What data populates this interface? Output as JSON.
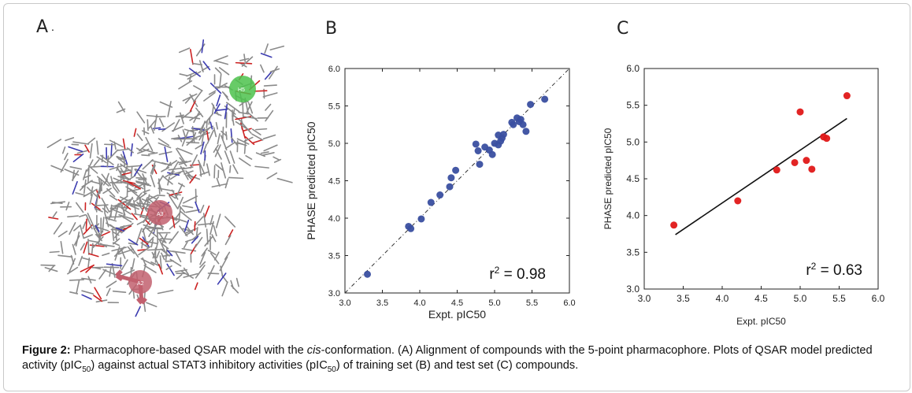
{
  "panels": {
    "a": "A",
    "b": "B",
    "c": "C"
  },
  "molecule": {
    "pharmacophore_labels": {
      "h": "H5",
      "a1": "A3",
      "a2": "A2"
    },
    "colors": {
      "sphere_green": "#4cc24c",
      "sphere_red": "#c2606e",
      "bond_gray": "#8a8a8a",
      "bond_red": "#cc2222",
      "bond_blue": "#3b3bb0"
    }
  },
  "chart_data": [
    {
      "type": "scatter",
      "panel": "B",
      "xlabel": "Expt. pIC50",
      "ylabel": "PHASE predicted pIC50",
      "xlim": [
        3.0,
        6.0
      ],
      "ylim": [
        3.0,
        6.0
      ],
      "xticks": [
        "3.0",
        "3.5",
        "4.0",
        "4.5",
        "5.0",
        "5.5",
        "6.0"
      ],
      "yticks": [
        "3.0",
        "3.5",
        "4.0",
        "4.5",
        "5.0",
        "5.5",
        "6.0"
      ],
      "r2_label": "r",
      "r2_sup": "2",
      "r2_value": " = 0.98",
      "marker_color": "#3a4fa0",
      "reference_line": "y = x (dash-dot)",
      "points": [
        [
          3.3,
          3.25
        ],
        [
          3.85,
          3.89
        ],
        [
          3.88,
          3.86
        ],
        [
          4.02,
          3.99
        ],
        [
          4.15,
          4.21
        ],
        [
          4.27,
          4.31
        ],
        [
          4.4,
          4.42
        ],
        [
          4.42,
          4.54
        ],
        [
          4.48,
          4.64
        ],
        [
          4.75,
          4.99
        ],
        [
          4.78,
          4.9
        ],
        [
          4.8,
          4.72
        ],
        [
          4.87,
          4.95
        ],
        [
          4.93,
          4.91
        ],
        [
          4.97,
          4.85
        ],
        [
          5.0,
          5.0
        ],
        [
          5.05,
          4.98
        ],
        [
          5.05,
          5.11
        ],
        [
          5.08,
          5.03
        ],
        [
          5.1,
          5.07
        ],
        [
          5.12,
          5.12
        ],
        [
          5.23,
          5.28
        ],
        [
          5.25,
          5.25
        ],
        [
          5.3,
          5.34
        ],
        [
          5.33,
          5.29
        ],
        [
          5.35,
          5.32
        ],
        [
          5.38,
          5.25
        ],
        [
          5.42,
          5.16
        ],
        [
          5.48,
          5.52
        ],
        [
          5.67,
          5.59
        ]
      ]
    },
    {
      "type": "scatter",
      "panel": "C",
      "xlabel": "Expt. pIC50",
      "ylabel": "PHASE predicted pIC50",
      "xlim": [
        3.0,
        6.0
      ],
      "ylim": [
        3.0,
        6.0
      ],
      "xticks": [
        "3.0",
        "3.5",
        "4.0",
        "4.5",
        "5.0",
        "5.5",
        "6.0"
      ],
      "yticks": [
        "3.0",
        "3.5",
        "4.0",
        "4.5",
        "5.0",
        "5.5",
        "6.0"
      ],
      "r2_label": "r",
      "r2_sup": "2",
      "r2_value": " = 0.63",
      "marker_color": "#e01818",
      "fit_line": {
        "x": [
          3.4,
          5.6
        ],
        "y": [
          3.74,
          5.32
        ]
      },
      "points": [
        [
          3.38,
          3.87
        ],
        [
          4.2,
          4.2
        ],
        [
          4.7,
          4.62
        ],
        [
          4.93,
          4.72
        ],
        [
          5.0,
          5.41
        ],
        [
          5.08,
          4.75
        ],
        [
          5.15,
          4.63
        ],
        [
          5.3,
          5.07
        ],
        [
          5.34,
          5.05
        ],
        [
          5.6,
          5.63
        ]
      ]
    }
  ],
  "caption": {
    "fig_label": "Figure 2:",
    "text1": " Pharmacophore-based QSAR model with the ",
    "italic": "cis",
    "text2": "-conformation. (A) Alignment of compounds  with the 5-point pharmacophore. Plots of QSAR model predicted activity (pIC",
    "sub1": "50",
    "text3": ") against actual STAT3   inhibitory activities (pIC",
    "sub2": "50",
    "text4": ") of training set (B) and test set (C) compounds."
  }
}
